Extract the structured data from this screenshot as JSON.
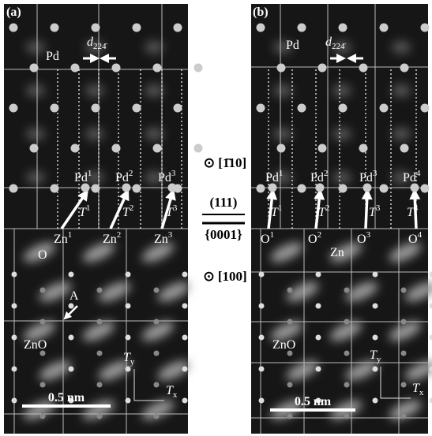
{
  "center": {
    "zone_top": "⊙ [1̄10]",
    "plane_top": "(111)",
    "plane_bottom": "{0001}",
    "zone_bottom": "⊙ [100]"
  },
  "panels": [
    {
      "label": "(a)",
      "metal": "Pd",
      "spacing": {
        "symbol": "d",
        "subscript": "224̄"
      },
      "top_atoms": [
        {
          "base": "Pd",
          "sup": "1"
        },
        {
          "base": "Pd",
          "sup": "2"
        },
        {
          "base": "Pd",
          "sup": "3"
        }
      ],
      "vectors": [
        {
          "base": "T",
          "sup": "1"
        },
        {
          "base": "T",
          "sup": "2"
        },
        {
          "base": "T",
          "sup": "3"
        }
      ],
      "bottom_atoms": [
        {
          "base": "Zn",
          "sup": "1"
        },
        {
          "base": "Zn",
          "sup": "2"
        },
        {
          "base": "Zn",
          "sup": "3"
        }
      ],
      "labels": [
        "O",
        "A",
        "ZnO"
      ],
      "axes": {
        "y": {
          "base": "T",
          "sub": "y"
        },
        "x": {
          "base": "T",
          "sub": "x"
        }
      },
      "scale_bar": "0.5 nm"
    },
    {
      "label": "(b)",
      "metal": "Pd",
      "spacing": {
        "symbol": "d",
        "subscript": "224̄"
      },
      "top_atoms": [
        {
          "base": "Pd",
          "sup": "1"
        },
        {
          "base": "Pd",
          "sup": "2"
        },
        {
          "base": "Pd",
          "sup": "3"
        },
        {
          "base": "Pd",
          "sup": "4"
        }
      ],
      "vectors": [
        {
          "base": "T",
          "sup": "1"
        },
        {
          "base": "T",
          "sup": "2"
        },
        {
          "base": "T",
          "sup": "3"
        },
        {
          "base": "T",
          "sup": "4"
        }
      ],
      "bottom_atoms": [
        {
          "base": "O",
          "sup": "1"
        },
        {
          "base": "O",
          "sup": "2"
        },
        {
          "base": "O",
          "sup": "3"
        },
        {
          "base": "O",
          "sup": "4"
        }
      ],
      "labels": [
        "Zn",
        "ZnO"
      ],
      "axes": {
        "y": {
          "base": "T",
          "sub": "y"
        },
        "x": {
          "base": "T",
          "sub": "x"
        }
      },
      "scale_bar": "0.5 nm"
    }
  ]
}
